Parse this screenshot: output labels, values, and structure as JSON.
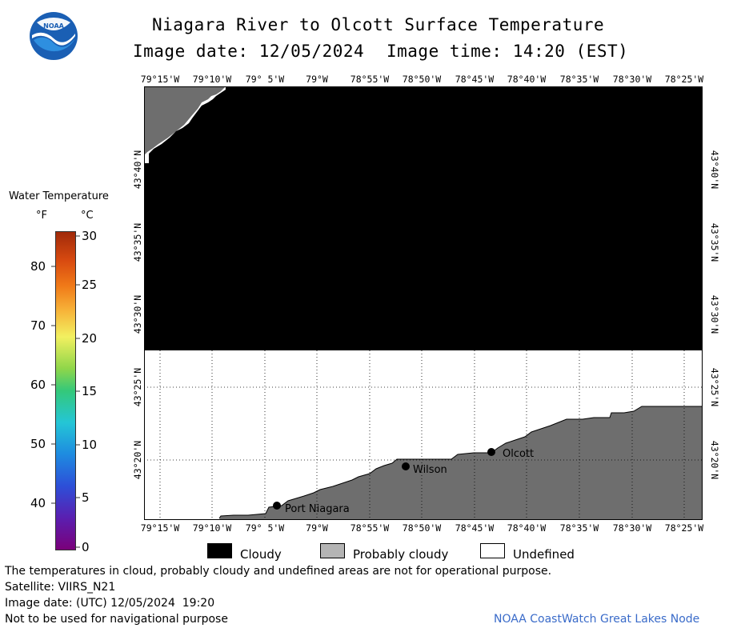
{
  "logo": {
    "text": "NOAA"
  },
  "header": {
    "title": "Niagara River to Olcott Surface Temperature",
    "image_date": "Image date: 12/05/2024",
    "image_time": "Image time: 14:20 (EST)"
  },
  "map": {
    "lon_labels_top": [
      "79°15'W",
      "79°10'W",
      "79° 5'W",
      "79°W",
      "78°55'W",
      "78°50'W",
      "78°45'W",
      "78°40'W",
      "78°35'W",
      "78°30'W",
      "78°25'W"
    ],
    "lon_labels_bottom": [
      "79°15'W",
      "79°10'W",
      "79° 5'W",
      "79°W",
      "78°55'W",
      "78°50'W",
      "78°45'W",
      "78°40'W",
      "78°35'W",
      "78°30'W",
      "78°25'W"
    ],
    "lat_labels": [
      "43°40'N",
      "43°35'N",
      "43°30'N",
      "43°25'N",
      "43°20'N"
    ],
    "cities": [
      {
        "name": "Port Niagara",
        "lon": -79.06,
        "lat": 43.27
      },
      {
        "name": "Wilson",
        "lon": -78.83,
        "lat": 43.31
      },
      {
        "name": "Olcott",
        "lon": -78.72,
        "lat": 43.33
      }
    ],
    "colors": {
      "cloudy": "#000000",
      "probably_cloudy": "#6e6e6e",
      "undefined": "#ffffff"
    }
  },
  "scale": {
    "title": "Water Temperature",
    "unit_f": "°F",
    "unit_c": "°C",
    "f_ticks": [
      "80",
      "70",
      "60",
      "50",
      "40"
    ],
    "c_ticks": [
      "30",
      "25",
      "20",
      "15",
      "10",
      "5",
      "0"
    ]
  },
  "legend": {
    "cloudy": "Cloudy",
    "probably_cloudy": "Probably cloudy",
    "undefined": "Undefined"
  },
  "footer": {
    "note": "The temperatures in cloud, probably cloudy and undefined areas are not for operational purpose.",
    "satellite": "Satellite: VIIRS_N21",
    "utc_date": "Image date: (UTC) 12/05/2024  19:20",
    "nav_warning": "Not to be used for navigational purpose",
    "credit": "NOAA CoastWatch Great Lakes Node",
    "credit_color": "#3a6bc9"
  }
}
